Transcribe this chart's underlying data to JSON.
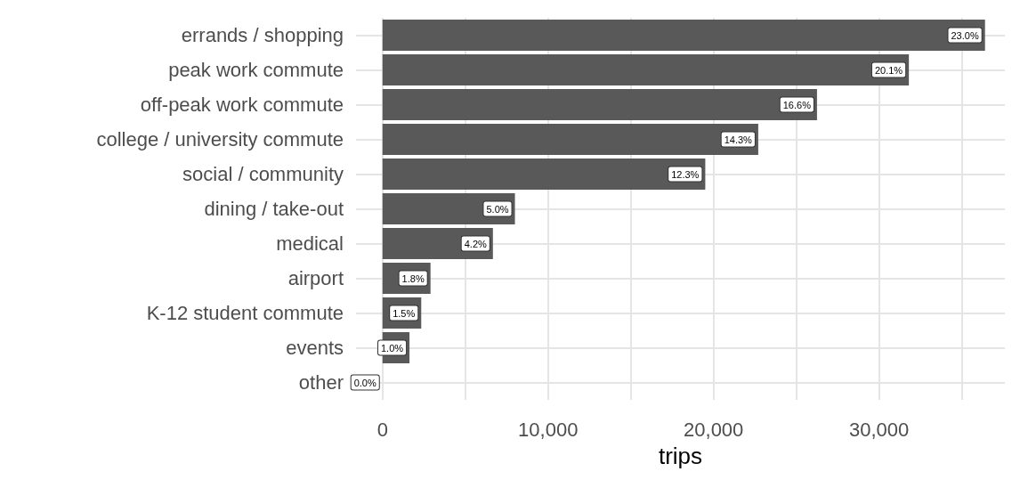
{
  "chart_data": {
    "type": "bar",
    "orientation": "horizontal",
    "xlabel": "trips",
    "categories": [
      "errands / shopping",
      "peak work commute",
      "off-peak work commute",
      "college / university commute",
      "social / community",
      "dining / take-out",
      "medical",
      "airport",
      "K-12 student commute",
      "events",
      "other"
    ],
    "values": [
      36400,
      31800,
      26250,
      22700,
      19500,
      8000,
      6670,
      2900,
      2340,
      1630,
      0
    ],
    "annotations": [
      {
        "text": "23.0%",
        "x": 36400,
        "y": "errands / shopping"
      },
      {
        "text": "20.1%",
        "x": 31800,
        "y": "peak work commute"
      },
      {
        "text": "16.6%",
        "x": 26250,
        "y": "off-peak work commute"
      },
      {
        "text": "14.3%",
        "x": 22700,
        "y": "college / university commute"
      },
      {
        "text": "12.3%",
        "x": 19500,
        "y": "social / community"
      },
      {
        "text": "5.0%",
        "x": 8000,
        "y": "dining / take-out"
      },
      {
        "text": "4.2%",
        "x": 6670,
        "y": "medical"
      },
      {
        "text": "1.8%",
        "x": 2900,
        "y": "airport"
      },
      {
        "text": "1.5%",
        "x": 2340,
        "y": "K-12 student commute"
      },
      {
        "text": "1.0%",
        "x": 1630,
        "y": "events"
      },
      {
        "text": "0.0%",
        "x": 0,
        "y": "other"
      }
    ],
    "color": "#595959",
    "xlim": [
      -1600,
      37600
    ],
    "xticks": [
      0,
      {
        "value": 5000,
        "label": null
      },
      {
        "value": 10000,
        "label": "10,000"
      },
      {
        "value": 15000,
        "label": null
      },
      {
        "value": 20000,
        "label": "20,000"
      },
      {
        "value": 25000,
        "label": null
      },
      {
        "value": 30000,
        "label": "30,000"
      },
      {
        "value": 35000,
        "label": null
      }
    ],
    "grid": true
  }
}
